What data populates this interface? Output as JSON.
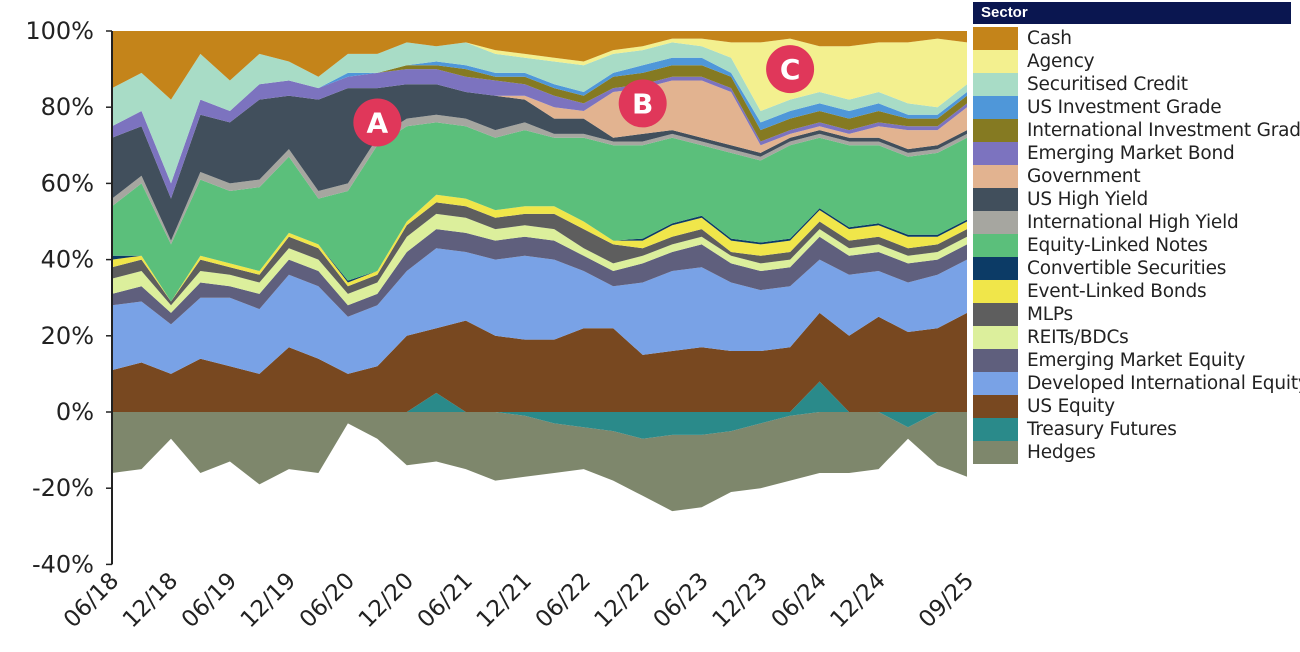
{
  "chart_data": {
    "type": "area",
    "stacked": true,
    "title": "",
    "xlabel": "",
    "ylabel": "",
    "ylim": [
      -40,
      100
    ],
    "y_ticks": [
      "-40%",
      "-20%",
      "0%",
      "20%",
      "40%",
      "60%",
      "80%",
      "100%"
    ],
    "y_tick_values": [
      -40,
      -20,
      0,
      20,
      40,
      60,
      80,
      100
    ],
    "grid": false,
    "legend_title": "Sector",
    "legend_position": "right",
    "x": [
      "06/18",
      "09/18",
      "12/18",
      "03/19",
      "06/19",
      "09/19",
      "12/19",
      "03/20",
      "06/20",
      "09/20",
      "12/20",
      "03/21",
      "06/21",
      "09/21",
      "12/21",
      "03/22",
      "06/22",
      "09/22",
      "12/22",
      "03/23",
      "06/23",
      "09/23",
      "12/23",
      "03/24",
      "06/24",
      "09/24",
      "12/24",
      "03/25",
      "06/25",
      "09/25"
    ],
    "x_tick_labels": [
      "06/18",
      "12/18",
      "06/19",
      "12/19",
      "06/20",
      "12/20",
      "06/21",
      "12/21",
      "06/22",
      "12/22",
      "06/23",
      "12/23",
      "06/24",
      "12/24",
      "09/25"
    ],
    "series": [
      {
        "name": "Cash",
        "color": "#c4841a",
        "values": [
          15,
          11,
          18,
          6,
          13,
          6,
          8,
          12,
          6,
          6,
          3,
          4,
          3,
          5,
          6,
          7,
          8,
          5,
          4,
          2,
          2,
          3,
          3,
          2,
          4,
          4,
          3,
          3,
          2,
          3
        ]
      },
      {
        "name": "Agency",
        "color": "#f3f08f",
        "values": [
          0,
          0,
          0,
          0,
          0,
          0,
          0,
          0,
          0,
          0,
          0,
          0,
          0,
          1,
          1,
          1,
          1,
          1,
          1,
          1,
          2,
          4,
          18,
          16,
          12,
          14,
          13,
          16,
          18,
          11
        ]
      },
      {
        "name": "Securitised Credit",
        "color": "#a8dcc6",
        "values": [
          10,
          10,
          22,
          12,
          8,
          8,
          5,
          3,
          5,
          5,
          6,
          4,
          6,
          5,
          4,
          6,
          7,
          5,
          4,
          4,
          3,
          4,
          3,
          3,
          3,
          3,
          3,
          3,
          2,
          2
        ]
      },
      {
        "name": "US Investment Grade",
        "color": "#4f97d9",
        "values": [
          0,
          0,
          0,
          0,
          0,
          0,
          0,
          0,
          1,
          0,
          0,
          1,
          1,
          1,
          1,
          1,
          1,
          1,
          2,
          2,
          2,
          1,
          2,
          2,
          2,
          2,
          2,
          1,
          1,
          1
        ]
      },
      {
        "name": "International Investment Grade",
        "color": "#857a22",
        "values": [
          0,
          0,
          0,
          0,
          0,
          0,
          0,
          0,
          0,
          0,
          1,
          1,
          2,
          1,
          2,
          2,
          2,
          3,
          3,
          3,
          3,
          3,
          3,
          3,
          3,
          3,
          3,
          2,
          2,
          2
        ]
      },
      {
        "name": "Emerging Market Bond",
        "color": "#7c73bf",
        "values": [
          3,
          4,
          4,
          4,
          3,
          4,
          4,
          3,
          3,
          4,
          4,
          4,
          4,
          4,
          3,
          3,
          2,
          1,
          1,
          1,
          1,
          1,
          1,
          1,
          1,
          1,
          1,
          1,
          1,
          1
        ]
      },
      {
        "name": "Government",
        "color": "#e2b390",
        "values": [
          0,
          0,
          0,
          0,
          0,
          0,
          0,
          0,
          0,
          0,
          0,
          0,
          0,
          0,
          1,
          3,
          2,
          12,
          12,
          13,
          15,
          14,
          2,
          1,
          1,
          1,
          3,
          5,
          4,
          6
        ]
      },
      {
        "name": "US High Yield",
        "color": "#414f5c",
        "values": [
          16,
          13,
          11,
          15,
          16,
          21,
          14,
          24,
          25,
          13,
          9,
          8,
          7,
          9,
          6,
          4,
          4,
          1,
          2,
          1,
          1,
          1,
          1,
          1,
          1,
          1,
          1,
          1,
          1,
          1
        ]
      },
      {
        "name": "International High Yield",
        "color": "#a6a6a0",
        "values": [
          2,
          2,
          1,
          2,
          2,
          2,
          2,
          2,
          2,
          2,
          2,
          2,
          2,
          2,
          2,
          1,
          1,
          1,
          1,
          1,
          1,
          1,
          1,
          1,
          1,
          1,
          1,
          1,
          1,
          1
        ]
      },
      {
        "name": "Equity-Linked Notes",
        "color": "#5bbf7b",
        "values": [
          13,
          19,
          15,
          20,
          19,
          22,
          20,
          12,
          23.5,
          33,
          25,
          19,
          19,
          19,
          20,
          18,
          22,
          25,
          24.5,
          22.5,
          18.5,
          22.5,
          21.5,
          24.5,
          18.5,
          21.5,
          20.5,
          20.5,
          21.5,
          21.5
        ]
      },
      {
        "name": "Convertible Securities",
        "color": "#0c3b66",
        "values": [
          1,
          0,
          0,
          0,
          0,
          0,
          0,
          0,
          0.5,
          0,
          0,
          0,
          0,
          0,
          0,
          0,
          0,
          0,
          0.5,
          0.5,
          0.5,
          0.5,
          0.5,
          0.5,
          0.5,
          0.5,
          0.5,
          0.5,
          0.5,
          0.5
        ]
      },
      {
        "name": "Event-Linked Bonds",
        "color": "#f0e64a",
        "values": [
          2,
          1,
          0,
          1,
          1,
          1,
          1,
          1,
          1,
          1,
          1,
          2,
          2,
          2,
          2,
          2,
          2,
          1,
          2,
          3,
          3,
          3,
          3,
          3,
          3,
          3,
          3,
          3,
          2,
          2
        ]
      },
      {
        "name": "MLPs",
        "color": "#5e5e5e",
        "values": [
          3,
          3,
          1,
          3,
          2,
          2,
          3,
          3,
          2,
          2,
          3,
          3,
          3,
          3,
          3,
          4,
          5,
          5,
          2,
          2,
          2,
          1,
          2,
          2,
          2,
          2,
          2,
          2,
          2,
          2
        ]
      },
      {
        "name": "REITs/BDCs",
        "color": "#dcef9c",
        "values": [
          4,
          4,
          2,
          3,
          3,
          3,
          3,
          3,
          3,
          3,
          4,
          4,
          4,
          3,
          3,
          3,
          2,
          2,
          2,
          2,
          2,
          2,
          2,
          2,
          2,
          2,
          2,
          2,
          2,
          2
        ]
      },
      {
        "name": "Emerging Market Equity",
        "color": "#5f5f7d",
        "values": [
          3,
          4,
          3,
          4,
          3,
          4,
          4,
          4,
          3,
          3,
          5,
          5,
          5,
          5,
          5,
          5,
          4,
          4,
          5,
          5,
          6,
          5,
          5,
          5,
          6,
          5,
          5,
          5,
          4,
          4
        ]
      },
      {
        "name": "Developed International Equity",
        "color": "#79a2e6",
        "values": [
          17,
          16,
          13,
          16,
          18,
          17,
          19,
          19,
          15,
          16,
          17,
          21,
          18,
          20,
          22,
          21,
          15,
          11,
          19,
          21,
          21,
          18,
          16,
          16,
          14,
          16,
          12,
          13,
          14,
          14
        ]
      },
      {
        "name": "US Equity",
        "color": "#784820",
        "values": [
          11,
          13,
          10,
          14,
          12,
          10,
          17,
          14,
          10,
          12,
          20,
          17,
          24,
          20,
          19,
          19,
          22,
          22,
          15,
          16,
          17,
          16,
          16,
          17,
          18,
          20,
          25,
          21,
          22,
          26
        ]
      },
      {
        "name": "Treasury Futures",
        "color": "#2a8a8a",
        "values": [
          0,
          0,
          0,
          0,
          0,
          0,
          0,
          0,
          0,
          0,
          0,
          5,
          0,
          0,
          -1,
          -3,
          -4,
          -5,
          -7,
          -6,
          -6,
          -5,
          -3,
          -1,
          8,
          0,
          0,
          -4,
          0,
          0
        ]
      },
      {
        "name": "Hedges",
        "color": "#7e876c",
        "values": [
          -16,
          -15,
          -7,
          -16,
          -13,
          -19,
          -15,
          -16,
          -3,
          -7,
          -14,
          -13,
          -15,
          -18,
          -16,
          -13,
          -11,
          -13,
          -15,
          -20,
          -19,
          -16,
          -17,
          -17,
          -16,
          -16,
          -15,
          -3,
          -14,
          -17
        ]
      }
    ],
    "annotations": [
      {
        "label": "A",
        "x": "09/20",
        "y": 76
      },
      {
        "label": "B",
        "x": "12/22",
        "y": 81
      },
      {
        "label": "C",
        "x": "03/24",
        "y": 90
      }
    ],
    "annotation_color": "#e0375a"
  }
}
